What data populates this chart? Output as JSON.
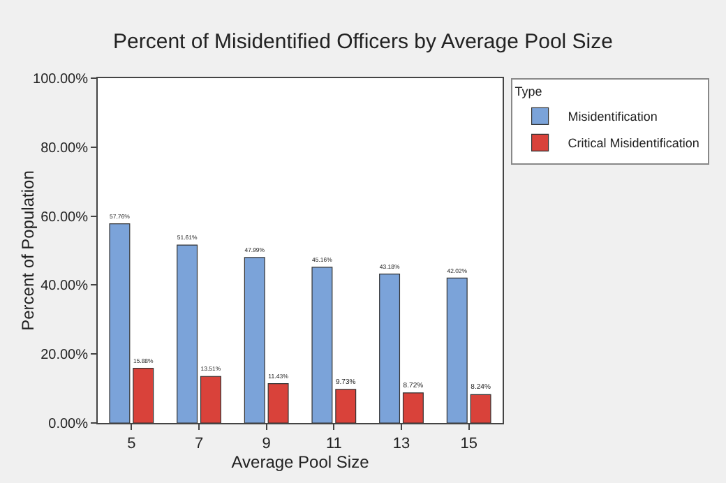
{
  "chart_data": {
    "type": "bar",
    "title": "Percent of Misidentified Officers by Average Pool Size",
    "xlabel": "Average Pool Size",
    "ylabel": "Percent of Population",
    "legend_title": "Type",
    "categories": [
      "5",
      "7",
      "9",
      "11",
      "13",
      "15"
    ],
    "series": [
      {
        "name": "Misidentification",
        "color": "#7ba3d9",
        "values": [
          57.76,
          51.61,
          47.99,
          45.16,
          43.18,
          42.02
        ],
        "value_labels": [
          "57.76%",
          "51.61%",
          "47.99%",
          "45.16%",
          "43.18%",
          "42.02%"
        ]
      },
      {
        "name": "Critical Misidentification",
        "color": "#d9423a",
        "values": [
          15.88,
          13.51,
          11.43,
          9.73,
          8.72,
          8.24
        ],
        "value_labels": [
          "15.88%",
          "13.51%",
          "11.43%",
          "9.73%",
          "8.72%",
          "8.24%"
        ]
      }
    ],
    "ylim": [
      0,
      100
    ],
    "yticks": [
      {
        "value": 0,
        "label": "0.00%"
      },
      {
        "value": 20,
        "label": "20.00%"
      },
      {
        "value": 40,
        "label": "40.00%"
      },
      {
        "value": 60,
        "label": "60.00%"
      },
      {
        "value": 80,
        "label": "80.00%"
      },
      {
        "value": 100,
        "label": "100.00%"
      }
    ],
    "grid": false,
    "legend": "top right"
  }
}
